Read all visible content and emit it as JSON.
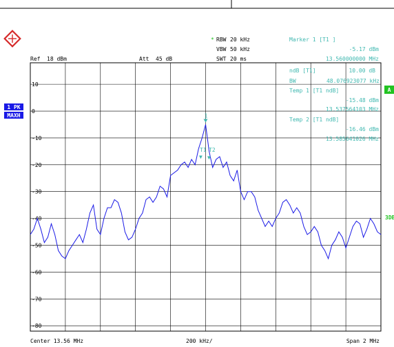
{
  "header": {
    "rbw_label": "RBW",
    "rbw_value": "20 kHz",
    "vbw_label": "VBW",
    "vbw_value": "50 kHz",
    "swt_label": "SWT",
    "swt_value": "20 ms",
    "ref_label": "Ref",
    "ref_value": "18 dBm",
    "att_label": "Att",
    "att_value": "45 dB",
    "rbw_marker": "*"
  },
  "markers": {
    "marker1_title": "Marker 1 [T1 ]",
    "marker1_level": "-5.17 dBm",
    "marker1_freq": "13.560000000 MHz",
    "ndb_label": "ndB [T1]",
    "ndb_value": "10.00 dB",
    "bw_label": "BW",
    "bw_value": "48.076923077 kHz",
    "temp1_title": "Temp 1 [T1 ndB]",
    "temp1_level": "-15.48 dBm",
    "temp1_freq": "13.537564103 MHz",
    "temp2_title": "Temp 2 [T1 ndB]",
    "temp2_level": "-16.46 dBm",
    "temp2_freq": "13.585641026 MHz",
    "t1_tag": "T1",
    "t2_tag": "T2",
    "m1_tag": "1"
  },
  "side": {
    "trace_label_1": "1 PK",
    "trace_label_2": "MAXH",
    "a_label": "A",
    "db_label": "3DB"
  },
  "footer": {
    "center_label": "Center  13.56 MHz",
    "div_label": "200 kHz/",
    "span_label": "Span  2 MHz"
  },
  "colors": {
    "trace": "#1a1ae6",
    "marker_text": "#3fb8b0",
    "grid": "#000000",
    "label_bg": "#1a1ae6",
    "a_bg": "#22c322",
    "logo": "#d62a2a"
  },
  "chart_data": {
    "type": "line",
    "x_unit": "MHz",
    "y_unit": "dBm",
    "xlim": [
      12.56,
      14.56
    ],
    "ylim": [
      -82,
      18
    ],
    "y_ticks": [
      10,
      0,
      -10,
      -20,
      -30,
      -40,
      -50,
      -60,
      -70,
      -80
    ],
    "y_tick_labels": [
      "10",
      "0",
      "-10",
      "-20",
      "-30",
      "-40",
      "-50",
      "-60",
      "-70",
      "-80"
    ],
    "grid": true,
    "series": [
      {
        "x": [
          12.56,
          12.58,
          12.6,
          12.62,
          12.64,
          12.66,
          12.68,
          12.7,
          12.72,
          12.74,
          12.76,
          12.78,
          12.8,
          12.82,
          12.84,
          12.86,
          12.88,
          12.9,
          12.92,
          12.94,
          12.96,
          12.98,
          13.0,
          13.02,
          13.04,
          13.06,
          13.08,
          13.1,
          13.12,
          13.14,
          13.16,
          13.18,
          13.2,
          13.22,
          13.24,
          13.26,
          13.28,
          13.3,
          13.32,
          13.34,
          13.36,
          13.38,
          13.4,
          13.42,
          13.44,
          13.46,
          13.48,
          13.5,
          13.52,
          13.54,
          13.56,
          13.58,
          13.6,
          13.62,
          13.64,
          13.66,
          13.68,
          13.7,
          13.72,
          13.74,
          13.76,
          13.78,
          13.8,
          13.82,
          13.84,
          13.86,
          13.88,
          13.9,
          13.92,
          13.94,
          13.96,
          13.98,
          14.0,
          14.02,
          14.04,
          14.06,
          14.08,
          14.1,
          14.12,
          14.14,
          14.16,
          14.18,
          14.2,
          14.22,
          14.24,
          14.26,
          14.28,
          14.3,
          14.32,
          14.34,
          14.36,
          14.38,
          14.4,
          14.42,
          14.44,
          14.46,
          14.48,
          14.5,
          14.52,
          14.54,
          14.56
        ],
        "y": [
          -46,
          -44,
          -40,
          -44,
          -49,
          -47,
          -42,
          -46,
          -52,
          -54,
          -55,
          -52,
          -50,
          -48,
          -46,
          -49,
          -44,
          -38,
          -35,
          -44,
          -46,
          -40,
          -36,
          -36,
          -33,
          -34,
          -38,
          -45,
          -48,
          -47,
          -44,
          -40,
          -38,
          -33,
          -32,
          -34,
          -32,
          -28,
          -29,
          -32,
          -24,
          -23,
          -22,
          -20,
          -19,
          -21,
          -18,
          -20,
          -14,
          -10,
          -5,
          -15,
          -21,
          -18,
          -17,
          -21,
          -19,
          -24,
          -26,
          -22,
          -30,
          -33,
          -30,
          -30,
          -32,
          -37,
          -40,
          -43,
          -41,
          -43,
          -40,
          -38,
          -34,
          -33,
          -35,
          -38,
          -36,
          -38,
          -43,
          -46,
          -45,
          -43,
          -45,
          -50,
          -52,
          -55,
          -50,
          -48,
          -45,
          -47,
          -51,
          -47,
          -43,
          -41,
          -42,
          -47,
          -44,
          -40,
          -42,
          -45,
          -46
        ]
      }
    ]
  }
}
